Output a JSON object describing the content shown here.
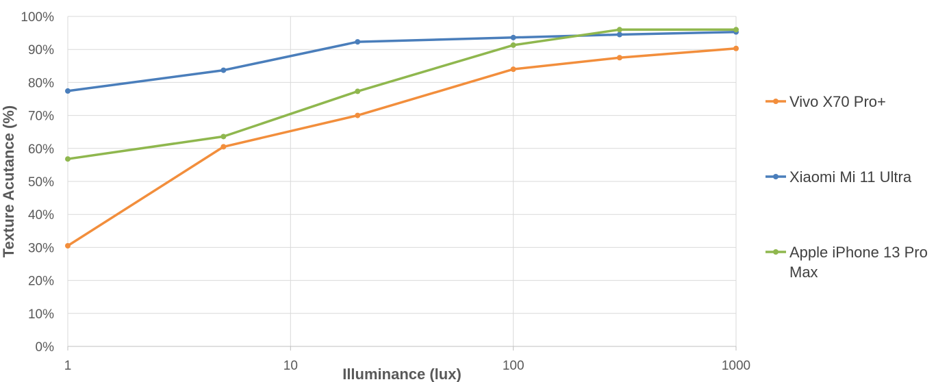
{
  "chart_data": {
    "type": "line",
    "title": "",
    "xlabel": "Illuminance (lux)",
    "ylabel": "Texture Acutance (%)",
    "x_scale": "log",
    "xlim": [
      1,
      1000
    ],
    "ylim": [
      0,
      100
    ],
    "x_ticks": [
      {
        "value": 1,
        "label": "1"
      },
      {
        "value": 10,
        "label": "10"
      },
      {
        "value": 100,
        "label": "100"
      },
      {
        "value": 1000,
        "label": "1000"
      }
    ],
    "y_ticks": [
      {
        "value": 0,
        "label": "0%"
      },
      {
        "value": 10,
        "label": "10%"
      },
      {
        "value": 20,
        "label": "20%"
      },
      {
        "value": 30,
        "label": "30%"
      },
      {
        "value": 40,
        "label": "40%"
      },
      {
        "value": 50,
        "label": "50%"
      },
      {
        "value": 60,
        "label": "60%"
      },
      {
        "value": 70,
        "label": "70%"
      },
      {
        "value": 80,
        "label": "80%"
      },
      {
        "value": 90,
        "label": "90%"
      },
      {
        "value": 100,
        "label": "100%"
      }
    ],
    "grid": true,
    "legend_position": "right",
    "series": [
      {
        "name": "Vivo X70 Pro+",
        "color": "#f28e3c",
        "points": [
          {
            "x": 1,
            "y": 30.5
          },
          {
            "x": 5,
            "y": 60.5
          },
          {
            "x": 20,
            "y": 70
          },
          {
            "x": 100,
            "y": 84
          },
          {
            "x": 300,
            "y": 87.5
          },
          {
            "x": 1000,
            "y": 90.3
          }
        ]
      },
      {
        "name": "Xiaomi Mi 11 Ultra",
        "color": "#4a7ebb",
        "points": [
          {
            "x": 1,
            "y": 77.4
          },
          {
            "x": 5,
            "y": 83.7
          },
          {
            "x": 20,
            "y": 92.3
          },
          {
            "x": 100,
            "y": 93.6
          },
          {
            "x": 300,
            "y": 94.5
          },
          {
            "x": 1000,
            "y": 95.3
          }
        ]
      },
      {
        "name": "Apple iPhone 13 Pro Max",
        "legend_lines": [
          "Apple iPhone 13 Pro",
          "Max"
        ],
        "color": "#8fb74e",
        "points": [
          {
            "x": 1,
            "y": 56.8
          },
          {
            "x": 5,
            "y": 63.6
          },
          {
            "x": 20,
            "y": 77.3
          },
          {
            "x": 100,
            "y": 91.3
          },
          {
            "x": 300,
            "y": 96
          },
          {
            "x": 1000,
            "y": 96
          }
        ]
      }
    ]
  }
}
